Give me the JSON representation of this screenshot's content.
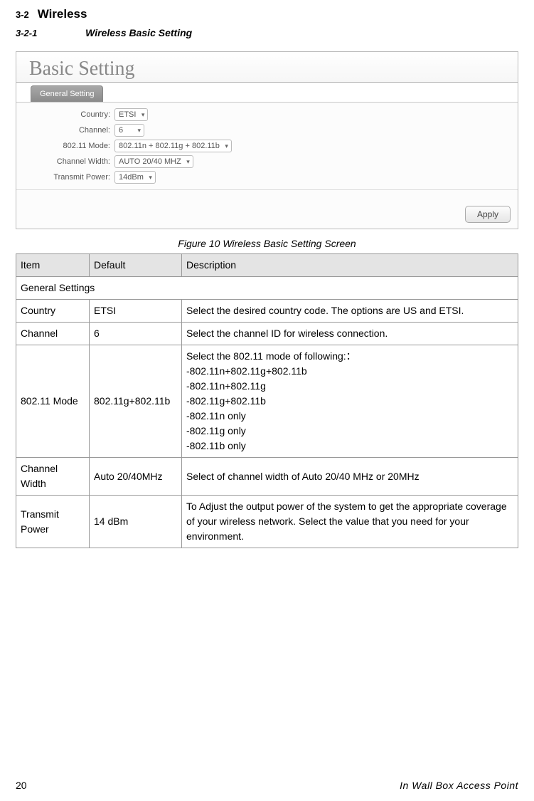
{
  "page": {
    "section_num": "3-2",
    "section_title": "Wireless",
    "subsection_num": "3-2-1",
    "subsection_title": "Wireless Basic Setting"
  },
  "screenshot": {
    "panel_title": "Basic Setting",
    "tab_label": "General Setting",
    "fields": {
      "country": {
        "label": "Country:",
        "value": "ETSI"
      },
      "channel": {
        "label": "Channel:",
        "value": "6"
      },
      "mode": {
        "label": "802.11 Mode:",
        "value": "802.11n + 802.11g + 802.11b"
      },
      "width": {
        "label": "Channel Width:",
        "value": "AUTO 20/40 MHZ"
      },
      "power": {
        "label": "Transmit Power:",
        "value": "14dBm"
      }
    },
    "apply_label": "Apply"
  },
  "caption": "Figure 10 Wireless Basic Setting Screen",
  "table": {
    "headers": {
      "item": "Item",
      "default": "Default",
      "description": "Description"
    },
    "section_row": "General Settings",
    "rows": {
      "country": {
        "item": "Country",
        "default": "ETSI",
        "desc": "Select the desired country code. The options are US and ETSI."
      },
      "channel": {
        "item": "Channel",
        "default": "6",
        "desc": "Select the channel ID for wireless connection."
      },
      "mode": {
        "item": "802.11 Mode",
        "default": "802.11g+802.11b",
        "desc_lines": {
          "l0": "Select the 802.11 mode of following:：",
          "l1": "-802.11n+802.11g+802.11b",
          "l2": "-802.11n+802.11g",
          "l3": "-802.11g+802.11b",
          "l4": "-802.11n only",
          "l5": "-802.11g only",
          "l6": "-802.11b only"
        }
      },
      "width": {
        "item": "Channel Width",
        "default": "Auto 20/40MHz",
        "desc": "Select of channel width of Auto 20/40 MHz or 20MHz"
      },
      "power": {
        "item": "Transmit Power",
        "default": "14 dBm",
        "desc": "To Adjust the output power of the system to get the appropriate coverage of your wireless network. Select the value that you need for your environment."
      }
    }
  },
  "footer": {
    "page_num": "20",
    "book_title": "In Wall Box Access Point"
  },
  "colors": {
    "border": "#999999",
    "header_bg": "#e4e4e4"
  }
}
